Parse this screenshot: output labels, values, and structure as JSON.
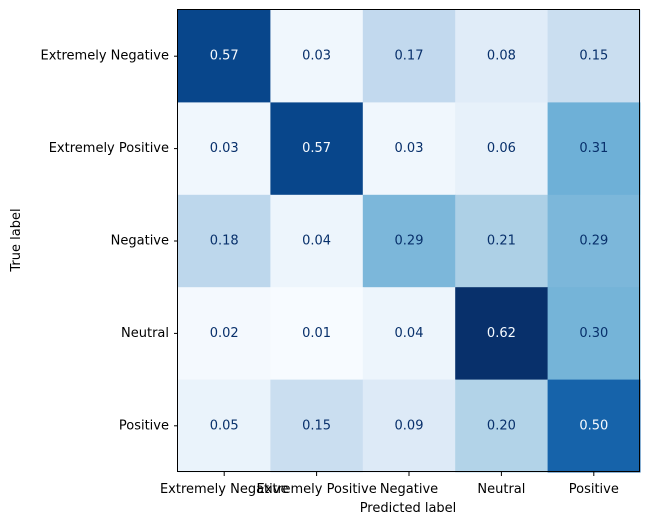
{
  "chart_data": {
    "type": "heatmap",
    "title": "",
    "xlabel": "Predicted label",
    "ylabel": "True label",
    "x_categories": [
      "Extremely Negative",
      "Extremely Positive",
      "Negative",
      "Neutral",
      "Positive"
    ],
    "y_categories": [
      "Extremely Negative",
      "Extremely Positive",
      "Negative",
      "Neutral",
      "Positive"
    ],
    "values": [
      [
        0.57,
        0.03,
        0.17,
        0.08,
        0.15
      ],
      [
        0.03,
        0.57,
        0.03,
        0.06,
        0.31
      ],
      [
        0.18,
        0.04,
        0.29,
        0.21,
        0.29
      ],
      [
        0.02,
        0.01,
        0.04,
        0.62,
        0.3
      ],
      [
        0.05,
        0.15,
        0.09,
        0.2,
        0.5
      ]
    ],
    "value_format": "0.00",
    "colormap": "Blues",
    "color_range": [
      0.01,
      0.62
    ],
    "colorbar": false,
    "grid": false
  }
}
